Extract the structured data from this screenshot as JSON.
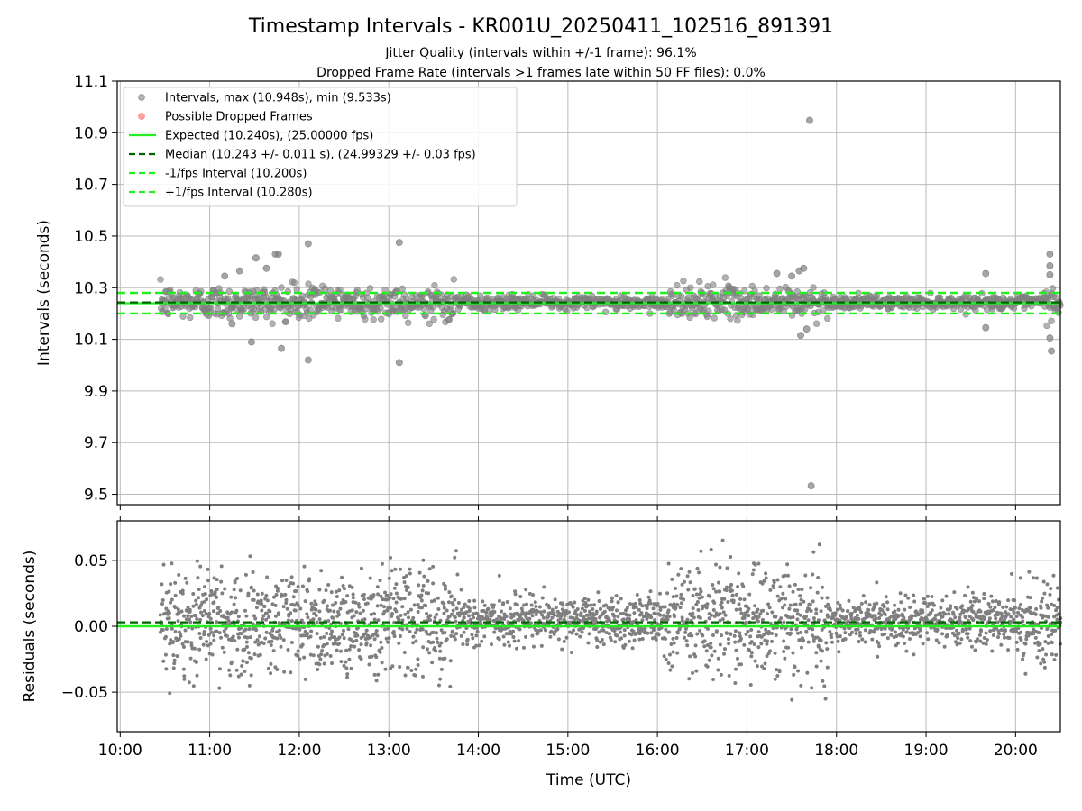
{
  "title": "Timestamp Intervals - KR001U_20250411_102516_891391",
  "subtitle_1": "Jitter Quality (intervals within +/-1 frame): 96.1%",
  "subtitle_2": "Dropped Frame Rate (intervals >1 frames late within 50 FF files): 0.0%",
  "colors": {
    "points": "#7f7f7f",
    "dropped": "#ff6666",
    "expected": "#22ee22",
    "median": "#006400",
    "fps_band": "#22ee22",
    "grid": "#bbbbbb"
  },
  "chart_data": [
    {
      "type": "scatter",
      "panel": "intervals",
      "ylabel": "Intervals (seconds)",
      "ylim": [
        9.46,
        11.1
      ],
      "xlim": [
        "09:58",
        "20:30"
      ],
      "y_ticks": [
        "9.5",
        "9.7",
        "9.9",
        "10.1",
        "10.3",
        "10.5",
        "10.7",
        "10.9",
        "11.1"
      ],
      "grid": true,
      "legend_position": "top-left",
      "legend": [
        {
          "label": "Intervals, max (10.948s), min (9.533s)",
          "kind": "point",
          "color": "#7f7f7f"
        },
        {
          "label": "Possible Dropped Frames",
          "kind": "point",
          "color": "#ff6666"
        },
        {
          "label": "Expected (10.240s), (25.00000 fps)",
          "kind": "solid",
          "color": "#22ee22"
        },
        {
          "label": "Median (10.243 +/- 0.011 s), (24.99329 +/- 0.03 fps)",
          "kind": "dashed",
          "color": "#006400"
        },
        {
          "label": "-1/fps Interval (10.200s)",
          "kind": "dashed",
          "color": "#22ee22"
        },
        {
          "label": "+1/fps Interval (10.280s)",
          "kind": "dashed",
          "color": "#22ee22"
        }
      ],
      "lines": {
        "expected": 10.24,
        "median": 10.243,
        "minus_fps": 10.2,
        "plus_fps": 10.28
      },
      "data_start": "10:27",
      "data_end": "20:30",
      "data_center": 10.243,
      "highlighted_points": [
        {
          "time": "17:42",
          "value": 10.948
        },
        {
          "time": "17:43",
          "value": 9.533
        },
        {
          "time": "11:46",
          "value": 10.43
        },
        {
          "time": "12:06",
          "value": 10.47
        },
        {
          "time": "13:07",
          "value": 10.475
        },
        {
          "time": "13:07",
          "value": 10.01
        },
        {
          "time": "12:06",
          "value": 10.02
        },
        {
          "time": "11:48",
          "value": 10.065
        },
        {
          "time": "11:28",
          "value": 10.09
        },
        {
          "time": "20:23",
          "value": 10.43
        },
        {
          "time": "20:23",
          "value": 10.385
        },
        {
          "time": "20:23",
          "value": 10.35
        },
        {
          "time": "20:23",
          "value": 10.105
        },
        {
          "time": "20:24",
          "value": 10.055
        },
        {
          "time": "19:40",
          "value": 10.355
        },
        {
          "time": "19:40",
          "value": 10.145
        },
        {
          "time": "17:38",
          "value": 10.375
        },
        {
          "time": "17:35",
          "value": 10.365
        },
        {
          "time": "17:30",
          "value": 10.345
        },
        {
          "time": "17:20",
          "value": 10.355
        },
        {
          "time": "17:36",
          "value": 10.115
        },
        {
          "time": "17:40",
          "value": 10.14
        },
        {
          "time": "11:10",
          "value": 10.345
        },
        {
          "time": "11:20",
          "value": 10.365
        },
        {
          "time": "11:38",
          "value": 10.375
        },
        {
          "time": "11:31",
          "value": 10.415
        },
        {
          "time": "11:44",
          "value": 10.43
        },
        {
          "time": "11:15",
          "value": 10.16
        }
      ]
    },
    {
      "type": "scatter",
      "panel": "residuals",
      "xlabel": "Time (UTC)",
      "ylabel": "Residuals (seconds)",
      "ylim": [
        -0.08,
        0.08
      ],
      "xlim": [
        "09:58",
        "20:30"
      ],
      "y_ticks": [
        "−0.05",
        "0.00",
        "0.05"
      ],
      "x_ticks": [
        "10:00",
        "11:00",
        "12:00",
        "13:00",
        "14:00",
        "15:00",
        "16:00",
        "17:00",
        "18:00",
        "19:00",
        "20:00"
      ],
      "grid": true,
      "lines": {
        "expected": 0.0,
        "median": 0.003
      },
      "data_start": "10:27",
      "data_end": "20:30"
    }
  ]
}
